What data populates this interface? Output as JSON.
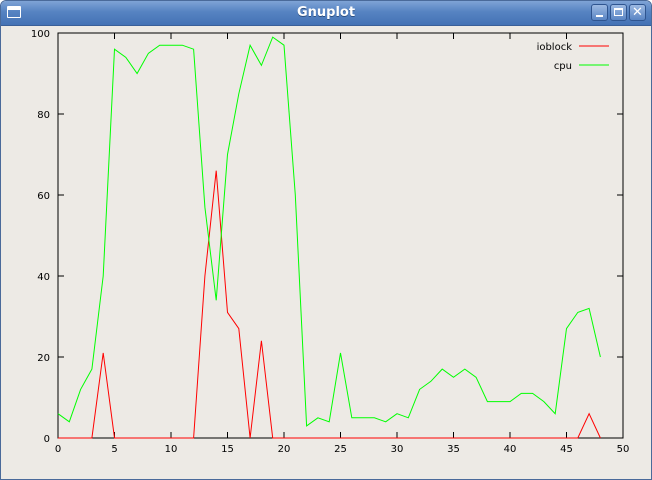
{
  "window": {
    "title": "Gnuplot",
    "icon": "window-icon",
    "buttons": [
      "minimize-icon",
      "maximize-icon",
      "close-icon"
    ]
  },
  "colors": {
    "ioblock": "#ff0000",
    "cpu": "#00ff00",
    "background": "#edeae5"
  },
  "chart_data": {
    "type": "line",
    "xlim": [
      0,
      50
    ],
    "ylim": [
      0,
      100
    ],
    "xticks": [
      0,
      5,
      10,
      15,
      20,
      25,
      30,
      35,
      40,
      45,
      50
    ],
    "yticks": [
      0,
      20,
      40,
      60,
      80,
      100
    ],
    "legend_position": "top-right",
    "grid": false,
    "series": [
      {
        "name": "ioblock",
        "x": [
          0,
          1,
          2,
          3,
          4,
          5,
          6,
          7,
          8,
          9,
          10,
          11,
          12,
          13,
          14,
          15,
          16,
          17,
          18,
          19,
          20,
          21,
          22,
          23,
          24,
          25,
          26,
          27,
          28,
          29,
          30,
          31,
          32,
          33,
          34,
          35,
          36,
          37,
          38,
          39,
          40,
          41,
          42,
          43,
          44,
          45,
          46,
          47,
          48
        ],
        "values": [
          0,
          0,
          0,
          0,
          21,
          0,
          0,
          0,
          0,
          0,
          0,
          0,
          0,
          40,
          66,
          31,
          27,
          0,
          24,
          0,
          0,
          0,
          0,
          0,
          0,
          0,
          0,
          0,
          0,
          0,
          0,
          0,
          0,
          0,
          0,
          0,
          0,
          0,
          0,
          0,
          0,
          0,
          0,
          0,
          0,
          0,
          0,
          6,
          0
        ]
      },
      {
        "name": "cpu",
        "x": [
          0,
          1,
          2,
          3,
          4,
          5,
          6,
          7,
          8,
          9,
          10,
          11,
          12,
          13,
          14,
          15,
          16,
          17,
          18,
          19,
          20,
          21,
          22,
          23,
          24,
          25,
          26,
          27,
          28,
          29,
          30,
          31,
          32,
          33,
          34,
          35,
          36,
          37,
          38,
          39,
          40,
          41,
          42,
          43,
          44,
          45,
          46,
          47,
          48
        ],
        "values": [
          6,
          4,
          12,
          17,
          40,
          96,
          94,
          90,
          95,
          97,
          97,
          97,
          96,
          57,
          34,
          70,
          85,
          97,
          92,
          99,
          97,
          60,
          3,
          5,
          4,
          21,
          5,
          5,
          5,
          4,
          6,
          5,
          12,
          14,
          17,
          15,
          17,
          15,
          9,
          9,
          9,
          11,
          11,
          9,
          6,
          27,
          31,
          32,
          20
        ]
      }
    ]
  }
}
